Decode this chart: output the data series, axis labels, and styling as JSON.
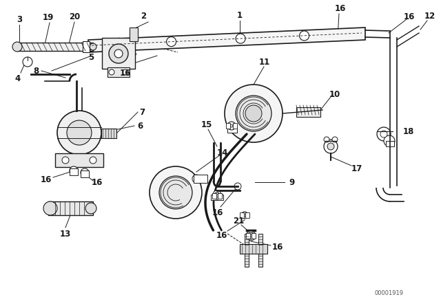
{
  "bg_color": "#ffffff",
  "lc": "#1a1a1a",
  "watermark": "00001919",
  "fig_w": 6.4,
  "fig_h": 4.48,
  "dpi": 100
}
